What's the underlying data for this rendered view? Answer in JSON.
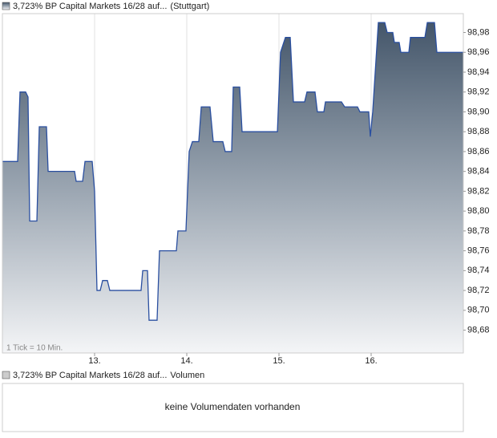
{
  "chart_data": {
    "type": "area",
    "series": [
      {
        "name": "3,723% BP Capital Markets 16/28 auf...",
        "color": "#2a4fa0",
        "x": [
          12.0,
          12.165,
          12.191,
          12.252,
          12.278,
          12.296,
          12.374,
          12.4,
          12.478,
          12.496,
          12.783,
          12.8,
          12.87,
          12.896,
          12.974,
          13.0,
          13.026,
          13.061,
          13.087,
          13.139,
          13.165,
          13.504,
          13.522,
          13.574,
          13.591,
          13.678,
          13.704,
          13.887,
          13.904,
          13.991,
          14.026,
          14.061,
          14.13,
          14.157,
          14.252,
          14.287,
          14.391,
          14.417,
          14.487,
          14.504,
          14.574,
          14.6,
          14.983,
          15.017,
          15.07,
          15.122,
          15.157,
          15.278,
          15.304,
          15.391,
          15.417,
          15.487,
          15.504,
          15.678,
          15.713,
          15.852,
          15.878,
          15.974,
          15.991,
          16.017,
          16.078,
          16.148,
          16.174,
          16.235,
          16.252,
          16.304,
          16.322,
          16.409,
          16.426,
          16.583,
          16.609,
          16.687,
          16.713,
          17.0
        ],
        "values": [
          98.85,
          98.85,
          98.92,
          98.92,
          98.915,
          98.79,
          98.79,
          98.885,
          98.885,
          98.84,
          98.84,
          98.83,
          98.83,
          98.85,
          98.85,
          98.82,
          98.72,
          98.72,
          98.73,
          98.73,
          98.72,
          98.72,
          98.74,
          98.74,
          98.69,
          98.69,
          98.76,
          98.76,
          98.78,
          98.78,
          98.86,
          98.87,
          98.87,
          98.905,
          98.905,
          98.87,
          98.87,
          98.86,
          98.86,
          98.925,
          98.925,
          98.88,
          98.88,
          98.96,
          98.975,
          98.975,
          98.91,
          98.91,
          98.92,
          98.92,
          98.9,
          98.9,
          98.91,
          98.91,
          98.905,
          98.905,
          98.9,
          98.9,
          98.875,
          98.9,
          98.99,
          98.99,
          98.98,
          98.98,
          98.97,
          98.97,
          98.96,
          98.96,
          98.975,
          98.975,
          98.99,
          98.99,
          98.96,
          98.96
        ]
      }
    ],
    "exchange": "(Stuttgart)",
    "annotation": "1 Tick = 10 Min.",
    "xlim": [
      12,
      17
    ],
    "xticks": [
      {
        "value": 13,
        "label": "13."
      },
      {
        "value": 14,
        "label": "14."
      },
      {
        "value": 15,
        "label": "15."
      },
      {
        "value": 16,
        "label": "16."
      }
    ],
    "ylim": [
      98.657,
      98.999
    ],
    "yticks": [
      {
        "value": 98.68,
        "label": "98,68"
      },
      {
        "value": 98.7,
        "label": "98,70"
      },
      {
        "value": 98.72,
        "label": "98,72"
      },
      {
        "value": 98.74,
        "label": "98,74"
      },
      {
        "value": 98.76,
        "label": "98,76"
      },
      {
        "value": 98.78,
        "label": "98,78"
      },
      {
        "value": 98.8,
        "label": "98,80"
      },
      {
        "value": 98.82,
        "label": "98,82"
      },
      {
        "value": 98.84,
        "label": "98,84"
      },
      {
        "value": 98.86,
        "label": "98,86"
      },
      {
        "value": 98.88,
        "label": "98,88"
      },
      {
        "value": 98.9,
        "label": "98,90"
      },
      {
        "value": 98.92,
        "label": "98,92"
      },
      {
        "value": 98.94,
        "label": "98,94"
      },
      {
        "value": 98.96,
        "label": "98,96"
      },
      {
        "value": 98.98,
        "label": "98,98"
      }
    ],
    "grid": "x"
  },
  "volume_panel": {
    "name": "3,723% BP Capital Markets 16/28 auf...",
    "label": "Volumen",
    "message": "keine Volumendaten vorhanden"
  }
}
